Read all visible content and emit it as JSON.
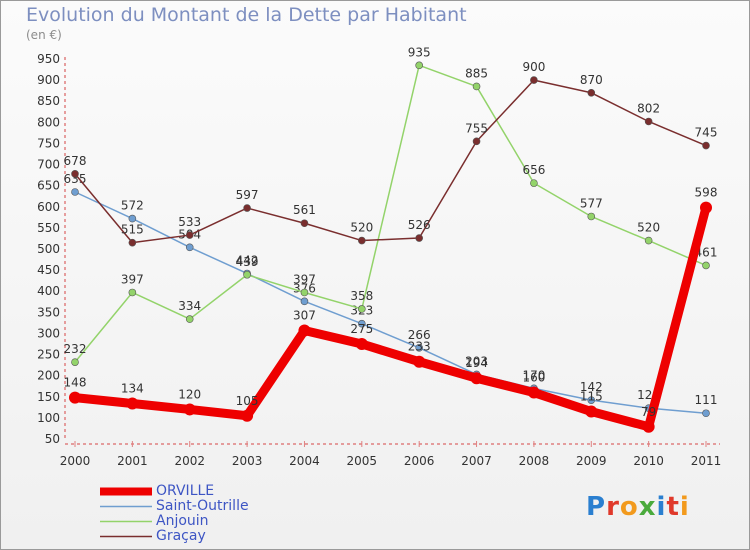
{
  "header": {
    "title": "Evolution du Montant de la Dette par Habitant",
    "subtitle": "(en €)"
  },
  "logo": {
    "text": "Proxiti",
    "colors": [
      "#2a7fd0",
      "#e0392b",
      "#f29a1d",
      "#4aaa3c",
      "#2a7fd0",
      "#e0392b",
      "#f29a1d"
    ]
  },
  "chart_data": {
    "type": "line",
    "title": "Evolution du Montant de la Dette par Habitant",
    "subtitle": "(en €)",
    "xlabel": "",
    "ylabel": "",
    "x": [
      "2000",
      "2001",
      "2002",
      "2003",
      "2004",
      "2005",
      "2006",
      "2007",
      "2008",
      "2009",
      "2010",
      "2011"
    ],
    "ylim": [
      50,
      950
    ],
    "yticks": [
      50,
      100,
      150,
      200,
      250,
      300,
      350,
      400,
      450,
      500,
      550,
      600,
      650,
      700,
      750,
      800,
      850,
      900,
      950
    ],
    "grid": false,
    "legend_position": "bottom-left",
    "series": [
      {
        "name": "ORVILLE",
        "color": "#ee0000",
        "thick": true,
        "values": [
          148,
          134,
          120,
          105,
          307,
          275,
          233,
          194,
          160,
          115,
          79,
          598
        ]
      },
      {
        "name": "Saint-Outrille",
        "color": "#6f9ed0",
        "thick": false,
        "values": [
          635,
          572,
          504,
          442,
          376,
          323,
          266,
          203,
          170,
          142,
          123,
          111
        ]
      },
      {
        "name": "Anjouin",
        "color": "#93d36a",
        "thick": false,
        "values": [
          232,
          397,
          334,
          439,
          397,
          358,
          935,
          885,
          656,
          577,
          520,
          461
        ]
      },
      {
        "name": "Graçay",
        "color": "#7a2e2e",
        "thick": false,
        "values": [
          678,
          515,
          533,
          597,
          561,
          520,
          526,
          755,
          900,
          870,
          802,
          745
        ]
      }
    ]
  }
}
